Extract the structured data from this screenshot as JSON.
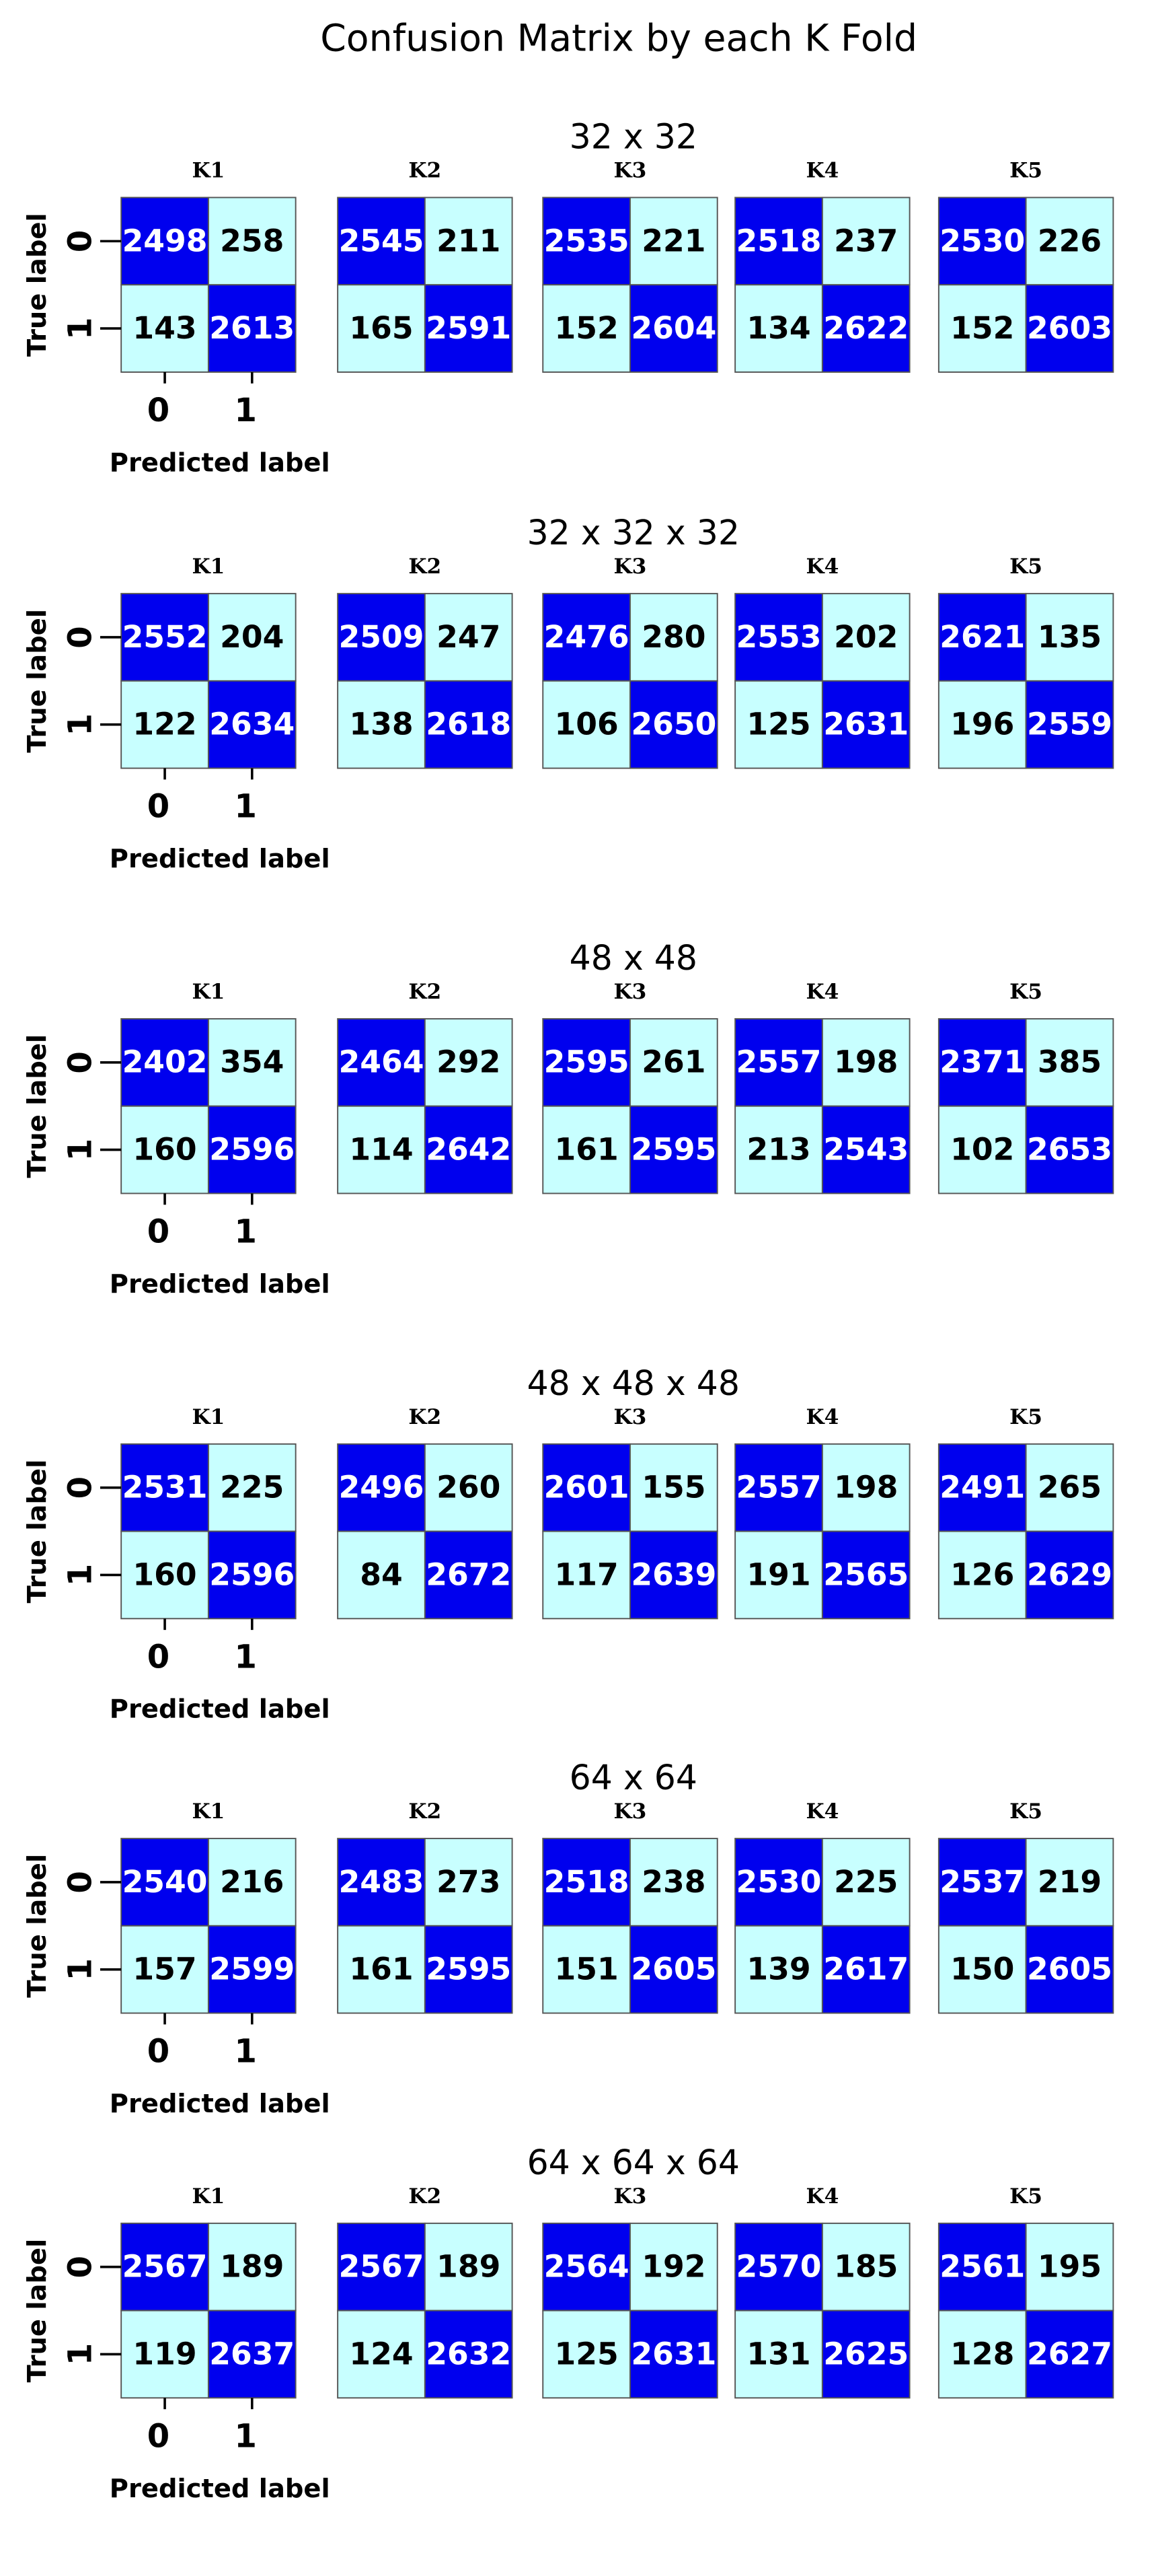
{
  "title": "Confusion Matrix by each K Fold",
  "y_label": "True label",
  "x_label": "Predicted label",
  "tick_labels": [
    0,
    1
  ],
  "groups": [
    {
      "title": "32 x 32",
      "folds": [
        {
          "label": "K1",
          "matrix": [
            [
              2498,
              258
            ],
            [
              143,
              2613
            ]
          ]
        },
        {
          "label": "K2",
          "matrix": [
            [
              2545,
              211
            ],
            [
              165,
              2591
            ]
          ]
        },
        {
          "label": "K3",
          "matrix": [
            [
              2535,
              221
            ],
            [
              152,
              2604
            ]
          ]
        },
        {
          "label": "K4",
          "matrix": [
            [
              2518,
              237
            ],
            [
              134,
              2622
            ]
          ]
        },
        {
          "label": "K5",
          "matrix": [
            [
              2530,
              226
            ],
            [
              152,
              2603
            ]
          ]
        }
      ]
    },
    {
      "title": "32 x 32 x 32",
      "folds": [
        {
          "label": "K1",
          "matrix": [
            [
              2552,
              204
            ],
            [
              122,
              2634
            ]
          ]
        },
        {
          "label": "K2",
          "matrix": [
            [
              2509,
              247
            ],
            [
              138,
              2618
            ]
          ]
        },
        {
          "label": "K3",
          "matrix": [
            [
              2476,
              280
            ],
            [
              106,
              2650
            ]
          ]
        },
        {
          "label": "K4",
          "matrix": [
            [
              2553,
              202
            ],
            [
              125,
              2631
            ]
          ]
        },
        {
          "label": "K5",
          "matrix": [
            [
              2621,
              135
            ],
            [
              196,
              2559
            ]
          ]
        }
      ]
    },
    {
      "title": "48 x 48",
      "folds": [
        {
          "label": "K1",
          "matrix": [
            [
              2402,
              354
            ],
            [
              160,
              2596
            ]
          ]
        },
        {
          "label": "K2",
          "matrix": [
            [
              2464,
              292
            ],
            [
              114,
              2642
            ]
          ]
        },
        {
          "label": "K3",
          "matrix": [
            [
              2595,
              261
            ],
            [
              161,
              2595
            ]
          ]
        },
        {
          "label": "K4",
          "matrix": [
            [
              2557,
              198
            ],
            [
              213,
              2543
            ]
          ]
        },
        {
          "label": "K5",
          "matrix": [
            [
              2371,
              385
            ],
            [
              102,
              2653
            ]
          ]
        }
      ]
    },
    {
      "title": "48 x 48 x 48",
      "folds": [
        {
          "label": "K1",
          "matrix": [
            [
              2531,
              225
            ],
            [
              160,
              2596
            ]
          ]
        },
        {
          "label": "K2",
          "matrix": [
            [
              2496,
              260
            ],
            [
              84,
              2672
            ]
          ]
        },
        {
          "label": "K3",
          "matrix": [
            [
              2601,
              155
            ],
            [
              117,
              2639
            ]
          ]
        },
        {
          "label": "K4",
          "matrix": [
            [
              2557,
              198
            ],
            [
              191,
              2565
            ]
          ]
        },
        {
          "label": "K5",
          "matrix": [
            [
              2491,
              265
            ],
            [
              126,
              2629
            ]
          ]
        }
      ]
    },
    {
      "title": "64 x 64",
      "folds": [
        {
          "label": "K1",
          "matrix": [
            [
              2540,
              216
            ],
            [
              157,
              2599
            ]
          ]
        },
        {
          "label": "K2",
          "matrix": [
            [
              2483,
              273
            ],
            [
              161,
              2595
            ]
          ]
        },
        {
          "label": "K3",
          "matrix": [
            [
              2518,
              238
            ],
            [
              151,
              2605
            ]
          ]
        },
        {
          "label": "K4",
          "matrix": [
            [
              2530,
              225
            ],
            [
              139,
              2617
            ]
          ]
        },
        {
          "label": "K5",
          "matrix": [
            [
              2537,
              219
            ],
            [
              150,
              2605
            ]
          ]
        }
      ]
    },
    {
      "title": "64 x 64 x 64",
      "folds": [
        {
          "label": "K1",
          "matrix": [
            [
              2567,
              189
            ],
            [
              119,
              2637
            ]
          ]
        },
        {
          "label": "K2",
          "matrix": [
            [
              2567,
              189
            ],
            [
              124,
              2632
            ]
          ]
        },
        {
          "label": "K3",
          "matrix": [
            [
              2564,
              192
            ],
            [
              125,
              2631
            ]
          ]
        },
        {
          "label": "K4",
          "matrix": [
            [
              2570,
              185
            ],
            [
              131,
              2625
            ]
          ]
        },
        {
          "label": "K5",
          "matrix": [
            [
              2561,
              195
            ],
            [
              128,
              2627
            ]
          ]
        }
      ]
    }
  ]
}
